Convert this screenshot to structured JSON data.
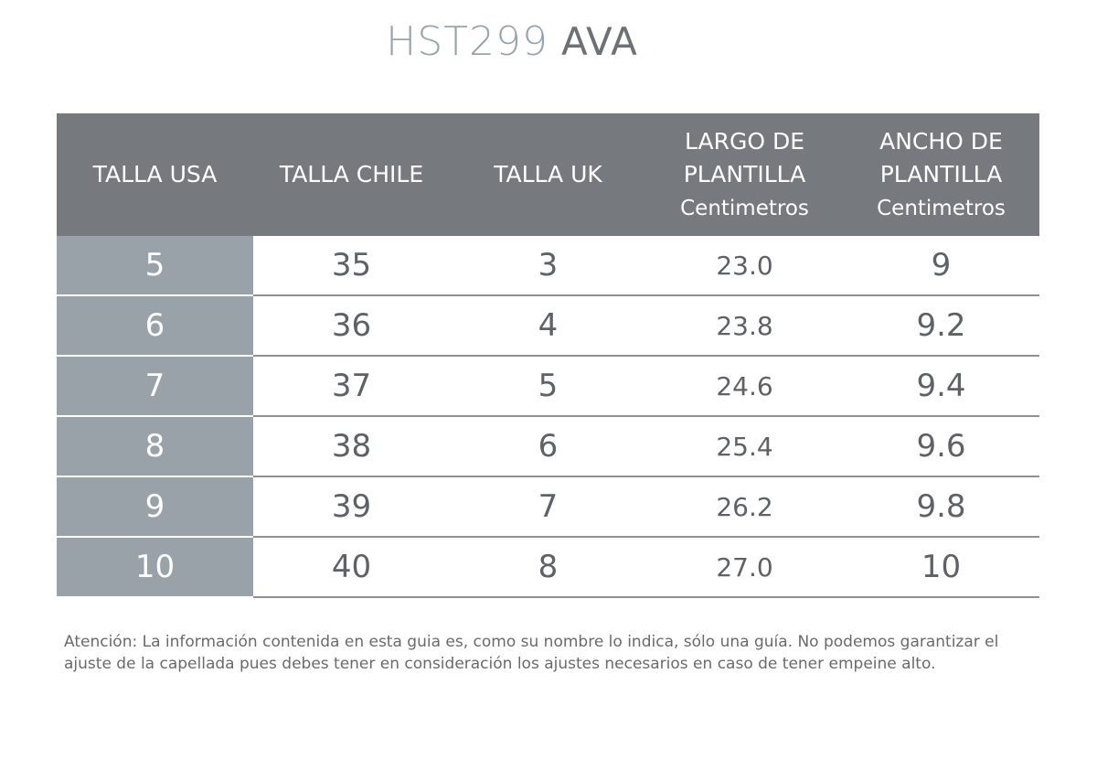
{
  "title": {
    "code": "HST299",
    "name": "AVA"
  },
  "table": {
    "headers": [
      {
        "line1": "TALLA USA",
        "line2": "",
        "sub": ""
      },
      {
        "line1": "TALLA CHILE",
        "line2": "",
        "sub": ""
      },
      {
        "line1": "TALLA UK",
        "line2": "",
        "sub": ""
      },
      {
        "line1": "LARGO DE",
        "line2": "PLANTILLA",
        "sub": "Centimetros"
      },
      {
        "line1": "ANCHO DE",
        "line2": "PLANTILLA",
        "sub": "Centimetros"
      }
    ],
    "rows": [
      [
        "5",
        "35",
        "3",
        "23.0",
        "9"
      ],
      [
        "6",
        "36",
        "4",
        "23.8",
        "9.2"
      ],
      [
        "7",
        "37",
        "5",
        "24.6",
        "9.4"
      ],
      [
        "8",
        "38",
        "6",
        "25.4",
        "9.6"
      ],
      [
        "9",
        "39",
        "7",
        "26.2",
        "9.8"
      ],
      [
        "10",
        "40",
        "8",
        "27.0",
        "10"
      ]
    ]
  },
  "note": "Atención: La información contenida en esta guia es, como su nombre lo indica, sólo una guía. No podemos garantizar el ajuste de la capellada pues debes tener en consideración los ajustes necesarios en caso de tener empeine alto.",
  "colors": {
    "header_bg": "#76797e",
    "usa_col_bg": "#9aa2a9",
    "title_code": "#96a4ac",
    "title_name": "#6d7075"
  }
}
